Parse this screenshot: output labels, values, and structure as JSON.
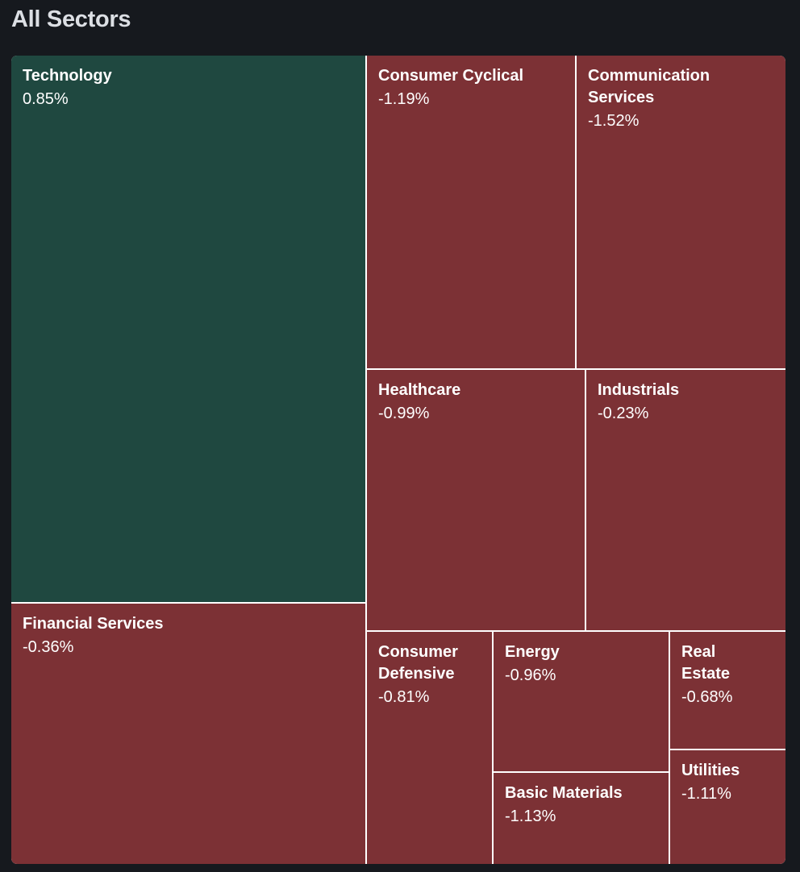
{
  "header": {
    "title": "All Sectors"
  },
  "chart_data": {
    "type": "treemap",
    "title": "All Sectors",
    "colors": {
      "positive": "#1f4840",
      "negative": "#7c3135",
      "border": "#ffffff"
    },
    "sectors": [
      {
        "name": "Technology",
        "change": "0.85%",
        "value": 0.85
      },
      {
        "name": "Financial Services",
        "change": "-0.36%",
        "value": -0.36
      },
      {
        "name": "Consumer Cyclical",
        "change": "-1.19%",
        "value": -1.19
      },
      {
        "name": "Communication\nServices",
        "change": "-1.52%",
        "value": -1.52
      },
      {
        "name": "Healthcare",
        "change": "-0.99%",
        "value": -0.99
      },
      {
        "name": "Industrials",
        "change": "-0.23%",
        "value": -0.23
      },
      {
        "name": "Consumer\nDefensive",
        "change": "-0.81%",
        "value": -0.81
      },
      {
        "name": "Energy",
        "change": "-0.96%",
        "value": -0.96
      },
      {
        "name": "Basic Materials",
        "change": "-1.13%",
        "value": -1.13
      },
      {
        "name": "Real\nEstate",
        "change": "-0.68%",
        "value": -0.68
      },
      {
        "name": "Utilities",
        "change": "-1.11%",
        "value": -1.11
      }
    ]
  }
}
